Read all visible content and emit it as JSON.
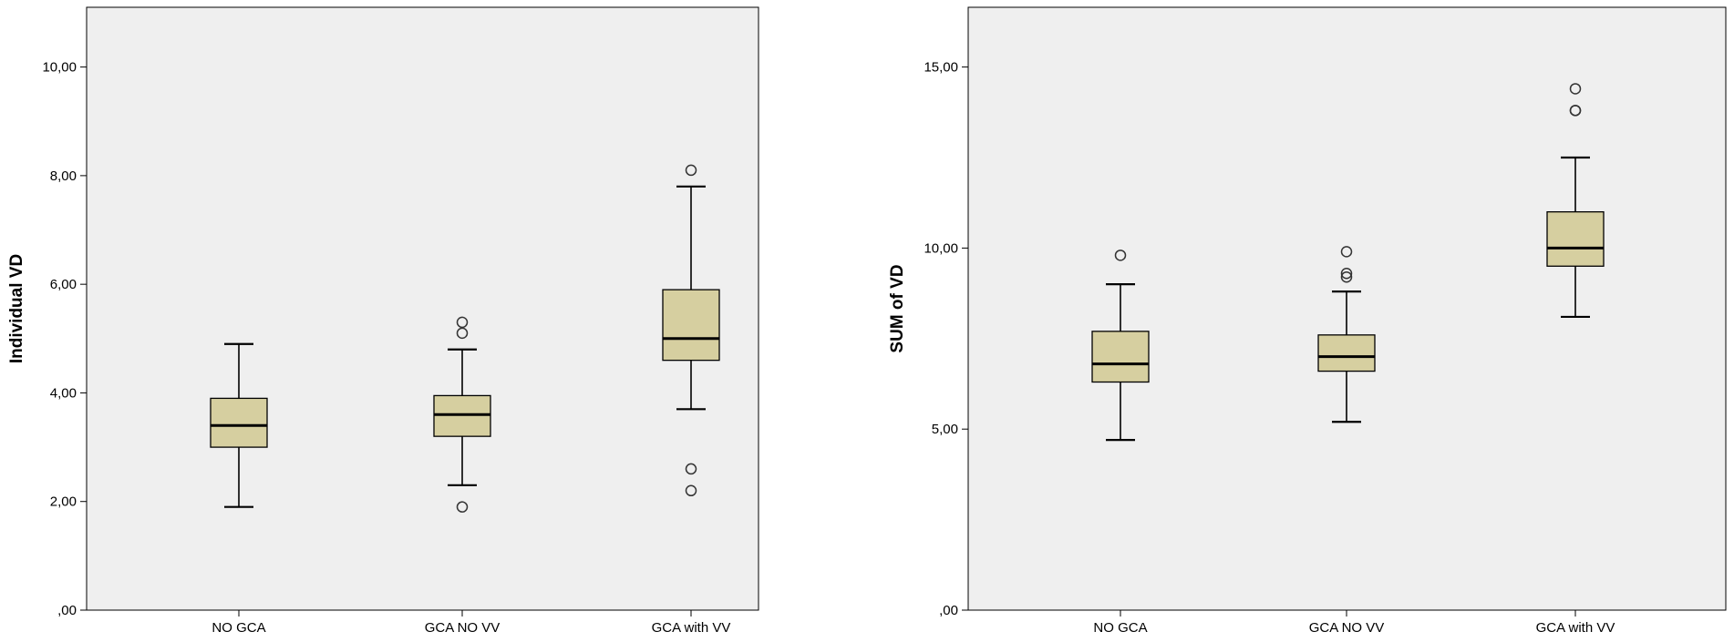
{
  "chart_data": [
    {
      "type": "boxplot",
      "ylabel": "Individual VD",
      "xlabel": "",
      "ylim": [
        0,
        11.1
      ],
      "ytick_values": [
        0,
        2,
        4,
        6,
        8,
        10
      ],
      "ytick_labels": [
        ",00",
        "2,00",
        "4,00",
        "6,00",
        "8,00",
        "10,00"
      ],
      "categories": [
        "NO GCA",
        "GCA NO VV",
        "GCA with VV"
      ],
      "boxes": [
        {
          "category": "NO GCA",
          "whisker_low": 1.9,
          "q1": 3.0,
          "median": 3.4,
          "q3": 3.9,
          "whisker_high": 4.9,
          "outliers": []
        },
        {
          "category": "GCA NO VV",
          "whisker_low": 2.3,
          "q1": 3.2,
          "median": 3.6,
          "q3": 3.95,
          "whisker_high": 4.8,
          "outliers": [
            5.3,
            5.1,
            1.9
          ]
        },
        {
          "category": "GCA with VV",
          "whisker_low": 3.7,
          "q1": 4.6,
          "median": 5.0,
          "q3": 5.9,
          "whisker_high": 7.8,
          "outliers": [
            8.1,
            2.6,
            2.2
          ]
        }
      ],
      "grid": false,
      "box_color": "#d6cfa0",
      "background_color": "#efefef"
    },
    {
      "type": "boxplot",
      "ylabel": "SUM of VD",
      "xlabel": "",
      "ylim": [
        0,
        16.65
      ],
      "ytick_values": [
        0,
        5,
        10,
        15
      ],
      "ytick_labels": [
        ",00",
        "5,00",
        "10,00",
        "15,00"
      ],
      "categories": [
        "NO GCA",
        "GCA NO VV",
        "GCA with VV"
      ],
      "boxes": [
        {
          "category": "NO GCA",
          "whisker_low": 4.7,
          "q1": 6.3,
          "median": 6.8,
          "q3": 7.7,
          "whisker_high": 9.0,
          "outliers": [
            9.8
          ]
        },
        {
          "category": "GCA NO VV",
          "whisker_low": 5.2,
          "q1": 6.6,
          "median": 7.0,
          "q3": 7.6,
          "whisker_high": 8.8,
          "outliers": [
            9.9,
            9.3,
            9.2
          ]
        },
        {
          "category": "GCA with VV",
          "whisker_low": 8.1,
          "q1": 9.5,
          "median": 10.0,
          "q3": 11.0,
          "whisker_high": 12.5,
          "outliers": [
            14.4,
            13.8,
            13.8
          ]
        }
      ],
      "grid": false,
      "box_color": "#d6cfa0",
      "background_color": "#efefef"
    }
  ]
}
